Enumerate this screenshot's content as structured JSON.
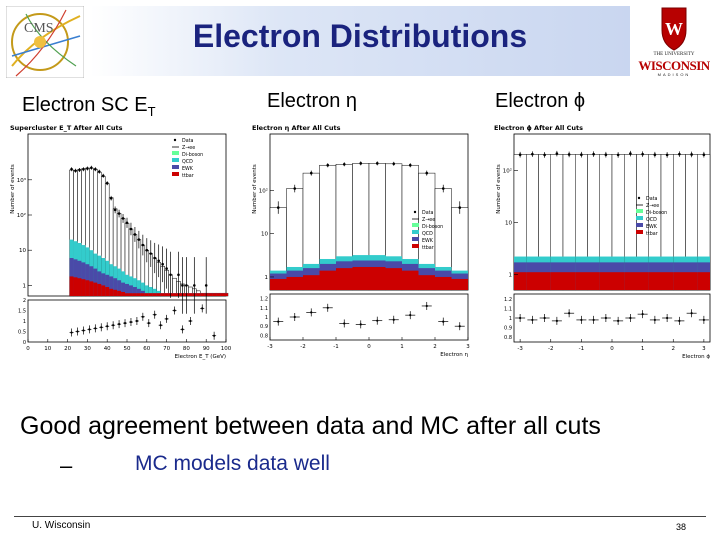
{
  "title": "Electron Distributions",
  "logos": {
    "cms_text": "CMS",
    "uw_line1": "THE UNIVERSITY",
    "uw_line2": "WISCONSIN",
    "uw_line3": "MADISON"
  },
  "headers": {
    "et_main": "Electron SC E",
    "et_sub": "T",
    "eta": "Electron η",
    "phi": "Electron ϕ"
  },
  "summary": "Good agreement between data and MC after all cuts",
  "bullet_dash": "–",
  "bullet": "MC models data well",
  "footer": {
    "left": "U. Wisconsin",
    "page": "38"
  },
  "colors": {
    "qcd": "#33cccc",
    "ewk": "#4a4aa8",
    "ttbar": "#cc0000",
    "dibos": "#66ff99",
    "title": "#1a237e"
  },
  "chart_data": [
    {
      "type": "bar",
      "title": "Supercluster E_T After All Cuts",
      "xlabel": "Electron E_T (GeV)",
      "ylabel": "Number of events",
      "yscale": "log",
      "xlim": [
        0,
        100
      ],
      "ylim": [
        0.5,
        20000
      ],
      "x_ticks": [
        "0",
        "10",
        "20",
        "30",
        "40",
        "50",
        "60",
        "70",
        "80",
        "90",
        "100"
      ],
      "y_ticks": [
        "1",
        "10",
        "10²",
        "10³"
      ],
      "legend": [
        "Data",
        "Z→ee",
        "Di-boson",
        "QCD",
        "EWK",
        "ttbar"
      ],
      "x": [
        2,
        4,
        6,
        8,
        10,
        12,
        14,
        16,
        18,
        20,
        22,
        24,
        26,
        28,
        30,
        32,
        34,
        36,
        38,
        40,
        42,
        44,
        46,
        48,
        50,
        52,
        54,
        56,
        58,
        60,
        62,
        64,
        66,
        68,
        70,
        72,
        74,
        76,
        78,
        80,
        82,
        84,
        86,
        88,
        90,
        92,
        94,
        96,
        98,
        100
      ],
      "data": [
        0,
        0,
        0,
        0,
        0,
        0,
        0,
        0,
        0,
        0,
        2000,
        1800,
        1900,
        2000,
        2100,
        2200,
        2000,
        1700,
        1300,
        800,
        300,
        140,
        110,
        80,
        60,
        40,
        28,
        20,
        14,
        10,
        8,
        6,
        5,
        4,
        3,
        2,
        0,
        2,
        1,
        1,
        0,
        1,
        0,
        0,
        1,
        0,
        0,
        0,
        0,
        0
      ],
      "mc_total": [
        0,
        0,
        0,
        0,
        0,
        0,
        0,
        0,
        0,
        0,
        1900,
        1850,
        1950,
        2050,
        2150,
        2150,
        2000,
        1650,
        1250,
        780,
        310,
        150,
        110,
        80,
        58,
        40,
        28,
        20,
        14,
        10,
        8,
        6,
        4.5,
        3.5,
        2.7,
        2,
        1.6,
        1.3,
        1.1,
        1,
        0.9,
        0.8,
        0.7,
        0.6,
        0.6,
        0.6,
        0.6,
        0.6,
        0.6,
        0.6
      ],
      "qcd": [
        0,
        0,
        0,
        0,
        0,
        0,
        0,
        0,
        0,
        0,
        20,
        18,
        16,
        14,
        12,
        10,
        8,
        7,
        6,
        5,
        4,
        3.5,
        3,
        2.5,
        2,
        1.8,
        1.6,
        1.4,
        1.2,
        1,
        0.9,
        0.8,
        0.7,
        0.6,
        0.6,
        0.6,
        0.6,
        0.6,
        0.6,
        0.6,
        0.6,
        0.6,
        0.6,
        0.6,
        0.6,
        0.6,
        0.6,
        0.6,
        0.6,
        0.6
      ],
      "ewk": [
        0,
        0,
        0,
        0,
        0,
        0,
        0,
        0,
        0,
        0,
        6,
        5.5,
        5,
        4.5,
        4,
        3.5,
        3,
        2.5,
        2.2,
        2,
        1.8,
        1.6,
        1.4,
        1.2,
        1.1,
        1,
        0.9,
        0.8,
        0.7,
        0.6,
        0.6,
        0.6,
        0.6,
        0.6,
        0.6,
        0.6,
        0.6,
        0.6,
        0.6,
        0.6,
        0.6,
        0.6,
        0.6,
        0.6,
        0.6,
        0.6,
        0.6,
        0.6,
        0.6,
        0.6
      ],
      "ttbar": [
        0,
        0,
        0,
        0,
        0,
        0,
        0,
        0,
        0,
        0,
        1.8,
        1.7,
        1.6,
        1.5,
        1.4,
        1.3,
        1.2,
        1.1,
        1,
        0.9,
        0.8,
        0.75,
        0.7,
        0.65,
        0.6,
        0.6,
        0.6,
        0.6,
        0.6,
        0.6,
        0.6,
        0.6,
        0.6,
        0.6,
        0.6,
        0.6,
        0.6,
        0.6,
        0.6,
        0.6,
        0.6,
        0.6,
        0.6,
        0.6,
        0.6,
        0.6,
        0.6,
        0.6,
        0.6,
        0.6
      ],
      "ratio_ylim": [
        0,
        2
      ],
      "ratio_ticks": [
        "0",
        "0.5",
        "1",
        "1.5",
        "2"
      ],
      "ratio_x": [
        22,
        25,
        28,
        31,
        34,
        37,
        40,
        43,
        46,
        49,
        52,
        55,
        58,
        61,
        64,
        67,
        70,
        74,
        78,
        82,
        88,
        94
      ],
      "ratio": [
        0.45,
        0.5,
        0.55,
        0.6,
        0.65,
        0.7,
        0.75,
        0.8,
        0.85,
        0.9,
        0.95,
        1.0,
        1.2,
        0.9,
        1.3,
        0.8,
        1.1,
        1.5,
        0.6,
        1.0,
        1.6,
        0.3
      ]
    },
    {
      "type": "bar",
      "title": "Electron η After All Cuts",
      "xlabel": "Electron η",
      "ylabel": "Number of events",
      "yscale": "log",
      "xlim": [
        -3,
        3
      ],
      "ylim": [
        0.5,
        2000
      ],
      "x_ticks": [
        "-3",
        "-2",
        "-1",
        "0",
        "1",
        "2",
        "3"
      ],
      "y_ticks": [
        "1",
        "10",
        "10²"
      ],
      "legend": [
        "Data",
        "Z→ee",
        "Di-boson",
        "QCD",
        "EWK",
        "ttbar"
      ],
      "x": [
        -2.75,
        -2.25,
        -1.75,
        -1.25,
        -0.75,
        -0.25,
        0.25,
        0.75,
        1.25,
        1.75,
        2.25,
        2.75
      ],
      "data": [
        40,
        110,
        250,
        380,
        400,
        420,
        420,
        410,
        380,
        250,
        110,
        40
      ],
      "mc_total": [
        40,
        110,
        250,
        380,
        400,
        420,
        420,
        410,
        380,
        250,
        110,
        40
      ],
      "qcd": [
        1.4,
        1.7,
        2.0,
        2.6,
        3.0,
        3.2,
        3.2,
        3.0,
        2.6,
        2.0,
        1.7,
        1.4
      ],
      "ewk": [
        1.2,
        1.4,
        1.6,
        2.0,
        2.3,
        2.4,
        2.4,
        2.3,
        2.0,
        1.6,
        1.4,
        1.2
      ],
      "ttbar": [
        0.9,
        1.0,
        1.1,
        1.4,
        1.6,
        1.7,
        1.7,
        1.6,
        1.4,
        1.1,
        1.0,
        0.9
      ],
      "ratio_ylim": [
        0.75,
        1.25
      ],
      "ratio_ticks": [
        "0.8",
        "0.9",
        "1",
        "1.1",
        "1.2"
      ],
      "ratio_x": [
        -2.75,
        -2.25,
        -1.75,
        -1.25,
        -0.75,
        -0.25,
        0.25,
        0.75,
        1.25,
        1.75,
        2.25,
        2.75
      ],
      "ratio": [
        0.95,
        1.0,
        1.05,
        1.1,
        0.93,
        0.92,
        0.96,
        0.97,
        1.02,
        1.12,
        0.95,
        0.9
      ]
    },
    {
      "type": "bar",
      "title": "Electron ϕ After All Cuts",
      "xlabel": "Electron ϕ",
      "ylabel": "Number of events",
      "yscale": "log",
      "xlim": [
        -3.2,
        3.2
      ],
      "ylim": [
        0.5,
        500
      ],
      "x_ticks": [
        "-3",
        "-2",
        "-1",
        "0",
        "1",
        "2",
        "3"
      ],
      "y_ticks": [
        "1",
        "10",
        "10²"
      ],
      "legend": [
        "Data",
        "Z→ee",
        "Di-boson",
        "QCD",
        "EWK",
        "ttbar"
      ],
      "x": [
        -3.0,
        -2.6,
        -2.2,
        -1.8,
        -1.4,
        -1.0,
        -0.6,
        -0.2,
        0.2,
        0.6,
        1.0,
        1.4,
        1.8,
        2.2,
        2.6,
        3.0
      ],
      "data": [
        200,
        205,
        198,
        210,
        202,
        200,
        205,
        200,
        198,
        210,
        205,
        200,
        198,
        205,
        202,
        200
      ],
      "mc_total": [
        202,
        202,
        202,
        202,
        202,
        202,
        202,
        202,
        202,
        202,
        202,
        202,
        202,
        202,
        202,
        202
      ],
      "qcd": [
        2.2,
        2.2,
        2.2,
        2.2,
        2.2,
        2.2,
        2.2,
        2.2,
        2.2,
        2.2,
        2.2,
        2.2,
        2.2,
        2.2,
        2.2,
        2.2
      ],
      "ewk": [
        1.7,
        1.7,
        1.7,
        1.7,
        1.7,
        1.7,
        1.7,
        1.7,
        1.7,
        1.7,
        1.7,
        1.7,
        1.7,
        1.7,
        1.7,
        1.7
      ],
      "ttbar": [
        1.1,
        1.1,
        1.1,
        1.1,
        1.1,
        1.1,
        1.1,
        1.1,
        1.1,
        1.1,
        1.1,
        1.1,
        1.1,
        1.1,
        1.1,
        1.1
      ],
      "ratio_ylim": [
        0.75,
        1.25
      ],
      "ratio_ticks": [
        "0.8",
        "0.9",
        "1",
        "1.1",
        "1.2"
      ],
      "ratio_x": [
        -3.0,
        -2.6,
        -2.2,
        -1.8,
        -1.4,
        -1.0,
        -0.6,
        -0.2,
        0.2,
        0.6,
        1.0,
        1.4,
        1.8,
        2.2,
        2.6,
        3.0
      ],
      "ratio": [
        1.0,
        0.98,
        1.0,
        0.97,
        1.05,
        0.98,
        0.98,
        1.0,
        0.97,
        1.0,
        1.04,
        0.98,
        1.0,
        0.97,
        1.05,
        0.98
      ]
    }
  ]
}
